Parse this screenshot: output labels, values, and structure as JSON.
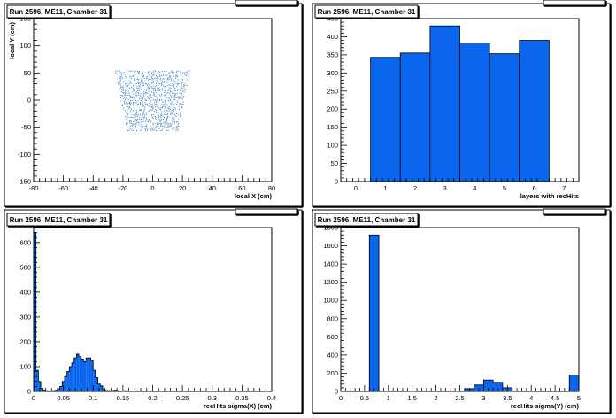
{
  "chart_data": [
    {
      "type": "scatter",
      "title": "Run 2596, ME11, Chamber 31",
      "xlabel": "local X (cm)",
      "ylabel": "local Y (cm)",
      "xlim": [
        -80,
        80
      ],
      "ylim": [
        -150,
        150
      ],
      "xticks": [
        "-80",
        "-60",
        "-40",
        "-20",
        "0",
        "20",
        "40",
        "60",
        "80"
      ],
      "yticks": [
        "-150",
        "-100",
        "-50",
        "0",
        "50",
        "100",
        "150"
      ],
      "point_region": {
        "y_top": 55,
        "y_bottom": -55,
        "x_top": [
          -25,
          25
        ],
        "x_bottom": [
          -17,
          17
        ]
      },
      "color": "#3a78c2"
    },
    {
      "type": "bar",
      "title": "Run 2596, ME11, Chamber 31",
      "xlabel": "layers with recHits",
      "ylabel": "",
      "xlim": [
        -0.5,
        7.5
      ],
      "ylim": [
        0,
        450
      ],
      "xticks": [
        "0",
        "1",
        "2",
        "3",
        "4",
        "5",
        "6",
        "7"
      ],
      "yticks": [
        "0",
        "50",
        "100",
        "150",
        "200",
        "250",
        "300",
        "350",
        "400",
        "450"
      ],
      "categories": [
        "1",
        "2",
        "3",
        "4",
        "5",
        "6"
      ],
      "bin_edges": [
        0.5,
        1.5,
        2.5,
        3.5,
        4.5,
        5.5,
        6.5
      ],
      "values": [
        343,
        355,
        430,
        383,
        353,
        390
      ],
      "color": "#0a66ec"
    },
    {
      "type": "bar",
      "title": "Run 2596, ME11, Chamber 31",
      "xlabel": "recHits sigma(X) (cm)",
      "ylabel": "",
      "xlim": [
        0,
        0.4
      ],
      "ylim": [
        0,
        660
      ],
      "xticks": [
        "0",
        "0.05",
        "0.1",
        "0.15",
        "0.2",
        "0.25",
        "0.3",
        "0.35",
        "0.4"
      ],
      "yticks": [
        "0",
        "100",
        "200",
        "300",
        "400",
        "500",
        "600"
      ],
      "bin_width": 0.004,
      "values": [
        640,
        85,
        40,
        12,
        5,
        3,
        2,
        2,
        3,
        5,
        10,
        20,
        40,
        60,
        80,
        100,
        115,
        135,
        150,
        140,
        130,
        120,
        135,
        135,
        125,
        85,
        55,
        30,
        22,
        8,
        4,
        3,
        2,
        4,
        5,
        3,
        2,
        1,
        3,
        2,
        1,
        0,
        0,
        0,
        0,
        0,
        0,
        0,
        0,
        0,
        0,
        0,
        0,
        1,
        1,
        0,
        0,
        0,
        0,
        0,
        0,
        0,
        0,
        0,
        0,
        0,
        0,
        0,
        0,
        0,
        0,
        0,
        0,
        0,
        0,
        0,
        0,
        0,
        0,
        0,
        0,
        0,
        0,
        0,
        0,
        0,
        0,
        0,
        0,
        0,
        0,
        0,
        0,
        0,
        0,
        0,
        0,
        0,
        0,
        0
      ],
      "color": "#0a66ec"
    },
    {
      "type": "bar",
      "title": "Run 2596, ME11, Chamber 31",
      "xlabel": "recHits sigma(Y) (cm)",
      "ylabel": "",
      "xlim": [
        0,
        5
      ],
      "ylim": [
        0,
        1800
      ],
      "xticks": [
        "0",
        "0.5",
        "1",
        "1.5",
        "2",
        "2.5",
        "3",
        "3.5",
        "4",
        "4.5",
        "5"
      ],
      "yticks": [
        "0",
        "200",
        "400",
        "600",
        "800",
        "1000",
        "1200",
        "1400",
        "1600",
        "1800"
      ],
      "bin_width": 0.2,
      "values": [
        0,
        0,
        0,
        1720,
        0,
        0,
        0,
        0,
        0,
        0,
        0,
        0,
        0,
        30,
        70,
        125,
        100,
        40,
        0,
        0,
        0,
        0,
        0,
        0,
        180
      ],
      "color": "#0a66ec"
    }
  ]
}
